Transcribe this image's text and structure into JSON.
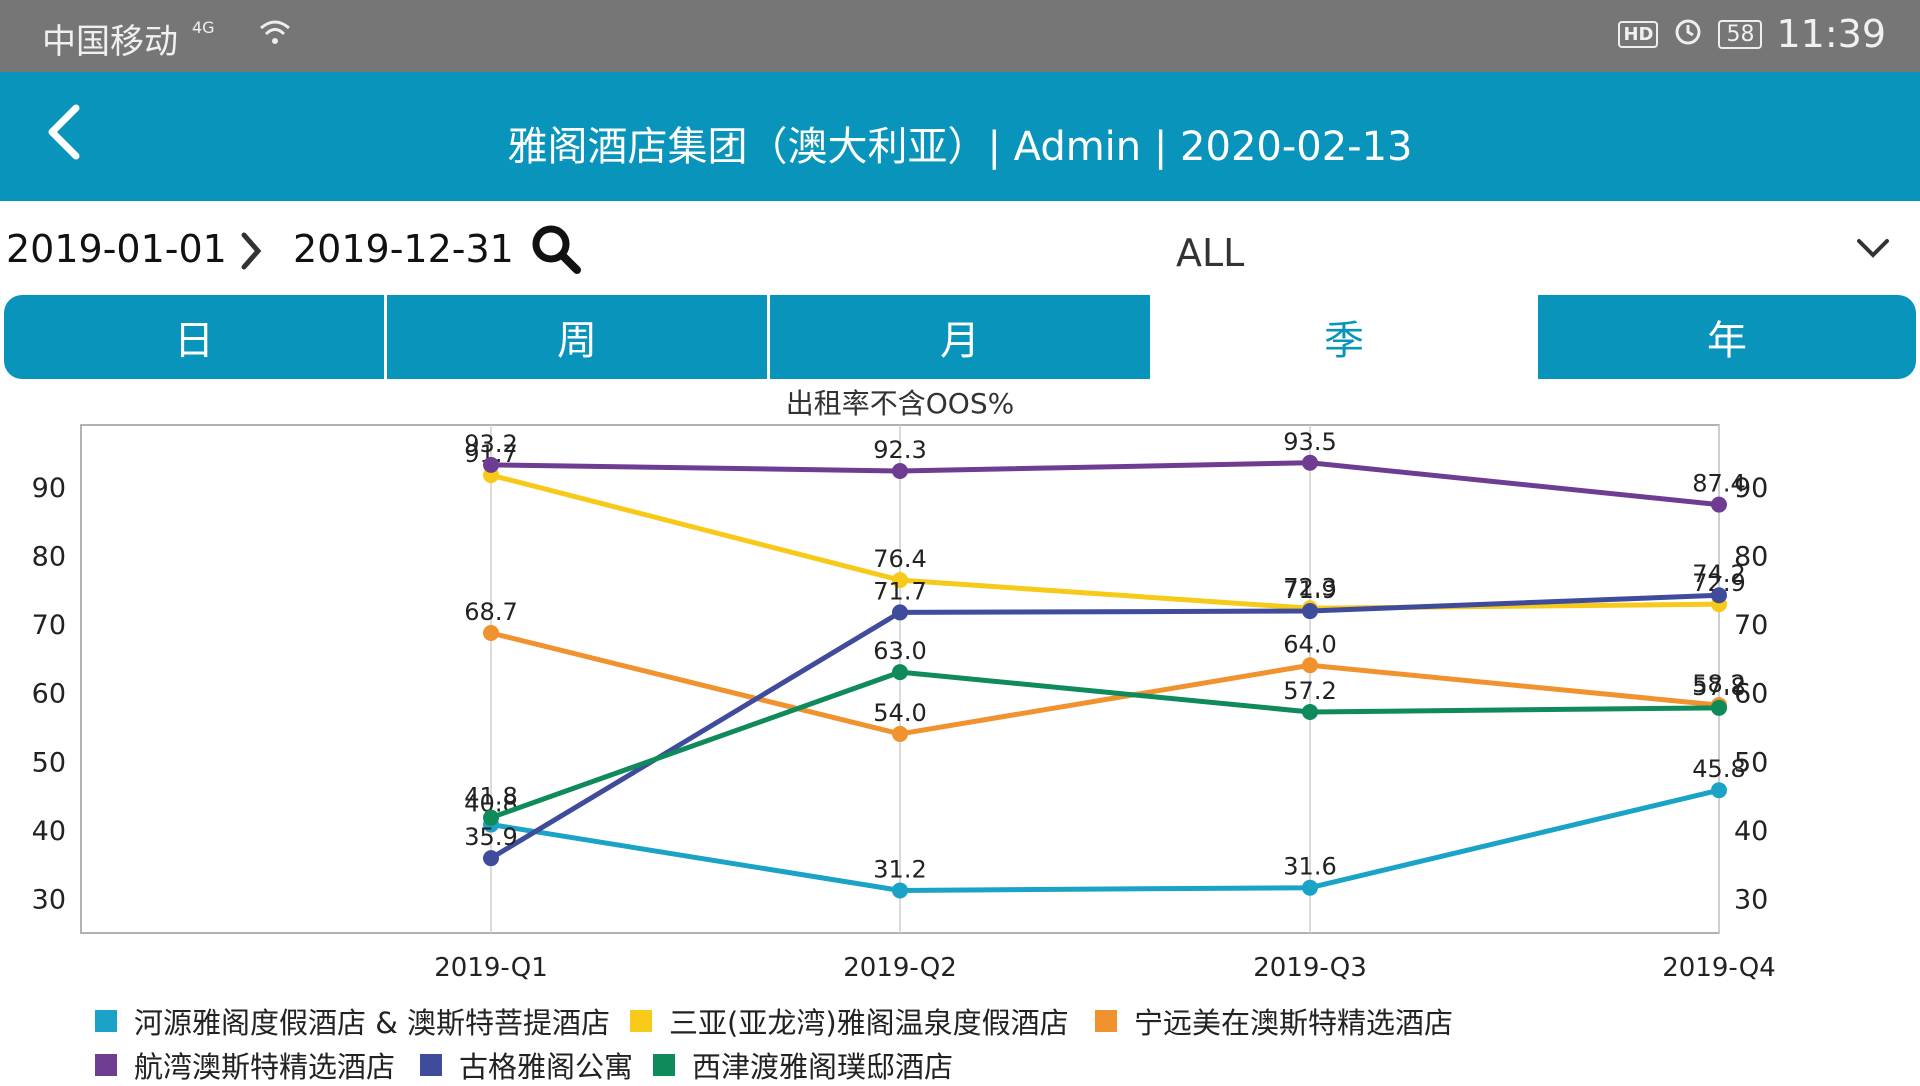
{
  "status_bar": {
    "carrier": "中国移动",
    "network": "4G",
    "battery": "58",
    "time": "11:39",
    "hd": "HD"
  },
  "header": {
    "back_icon": "chevron-left-icon",
    "title": "雅阁酒店集团（澳大利亚）| Admin | 2020-02-13"
  },
  "filter": {
    "start_date": "2019-01-01",
    "end_date": "2019-12-31",
    "selected": "ALL"
  },
  "tabs": [
    {
      "label": "日",
      "active": false
    },
    {
      "label": "周",
      "active": false
    },
    {
      "label": "月",
      "active": false
    },
    {
      "label": "季",
      "active": true
    },
    {
      "label": "年",
      "active": false
    }
  ],
  "chart_data": {
    "type": "line",
    "title": "出租率不含OOS%",
    "categories": [
      "2019-Q1",
      "2019-Q2",
      "2019-Q3",
      "2019-Q4"
    ],
    "ylim": [
      25,
      99
    ],
    "yticks": [
      30,
      40,
      50,
      60,
      70,
      80,
      90
    ],
    "grid": "vertical",
    "legend": "bottom",
    "series": [
      {
        "name": "河源雅阁度假酒店 & 澳斯特菩提酒店",
        "color": "#1aa3c7",
        "values": [
          40.8,
          31.2,
          31.6,
          45.8
        ]
      },
      {
        "name": "三亚(亚龙湾)雅阁温泉度假酒店",
        "color": "#f7c919",
        "values": [
          91.7,
          76.4,
          72.3,
          72.9
        ]
      },
      {
        "name": "宁远美在澳斯特精选酒店",
        "color": "#f0922e",
        "values": [
          68.7,
          54.0,
          64.0,
          58.2
        ]
      },
      {
        "name": "航湾澳斯特精选酒店",
        "color": "#6e3d92",
        "values": [
          93.2,
          92.3,
          93.5,
          87.4
        ]
      },
      {
        "name": "古格雅阁公寓",
        "color": "#3f4c9b",
        "values": [
          35.9,
          71.7,
          71.9,
          74.2
        ]
      },
      {
        "name": "西津渡雅阁璞邸酒店",
        "color": "#0f8a5a",
        "values": [
          41.8,
          63.0,
          57.2,
          57.8
        ]
      }
    ]
  }
}
